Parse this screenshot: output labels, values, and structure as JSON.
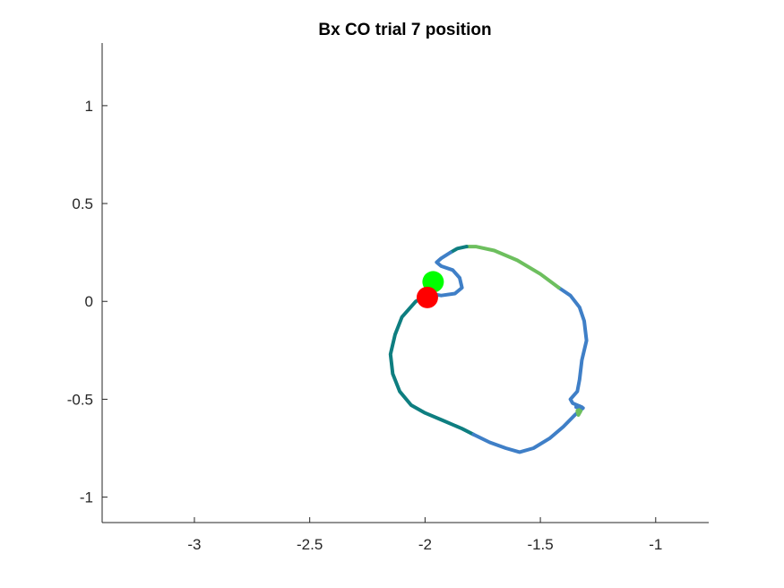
{
  "chart_data": {
    "type": "line",
    "title": "Bx  CO trial 7 position",
    "xlabel": "",
    "ylabel": "",
    "xlim": [
      -3.4,
      -0.77
    ],
    "ylim": [
      -1.13,
      1.32
    ],
    "xticks": [
      -3,
      -2.5,
      -2,
      -1.5,
      -1
    ],
    "xtick_labels": [
      "-3",
      "-2.5",
      "-2",
      "-1.5",
      "-1"
    ],
    "yticks": [
      1,
      0.5,
      0,
      -0.5,
      -1
    ],
    "ytick_labels": [
      "1",
      "0.5",
      "0",
      "-0.5",
      "-1"
    ],
    "grid": false,
    "box": false,
    "colors": {
      "blue": "#3F7FC7",
      "green": "#6DBF5E",
      "teal": "#0E7E80",
      "target_green": "#00FF00",
      "target_red": "#FF0000"
    },
    "series": [
      {
        "color": "#3F7FC7",
        "x": [
          -1.32,
          -1.36,
          -1.37,
          -1.34,
          -1.33,
          -1.32,
          -1.3,
          -1.31,
          -1.33,
          -1.37,
          -1.42
        ],
        "y": [
          -0.54,
          -0.52,
          -0.5,
          -0.46,
          -0.4,
          -0.3,
          -0.2,
          -0.1,
          -0.03,
          0.03,
          0.07
        ]
      },
      {
        "color": "#6DBF5E",
        "x": [
          -1.42,
          -1.5,
          -1.6,
          -1.7,
          -1.78,
          -1.82
        ],
        "y": [
          0.07,
          0.14,
          0.21,
          0.26,
          0.28,
          0.28
        ]
      },
      {
        "color": "#0E7E80",
        "x": [
          -1.82,
          -1.86,
          -1.89
        ],
        "y": [
          0.28,
          0.27,
          0.25
        ]
      },
      {
        "color": "#3F7FC7",
        "x": [
          -1.89,
          -1.93,
          -1.95,
          -1.93,
          -1.88,
          -1.85,
          -1.84,
          -1.87,
          -1.93,
          -1.98
        ],
        "y": [
          0.25,
          0.22,
          0.2,
          0.18,
          0.16,
          0.12,
          0.07,
          0.04,
          0.03,
          0.04
        ]
      },
      {
        "color": "#0E7E80",
        "x": [
          -1.98,
          -2.04,
          -2.1,
          -2.13,
          -2.15,
          -2.14,
          -2.11,
          -2.06,
          -2.0,
          -1.92,
          -1.84,
          -1.79
        ],
        "y": [
          0.04,
          0.0,
          -0.08,
          -0.17,
          -0.27,
          -0.37,
          -0.46,
          -0.53,
          -0.57,
          -0.61,
          -0.65,
          -0.68
        ]
      },
      {
        "color": "#3F7FC7",
        "x": [
          -1.79,
          -1.72,
          -1.65,
          -1.59,
          -1.53,
          -1.46,
          -1.4,
          -1.35,
          -1.32
        ],
        "y": [
          -0.68,
          -0.72,
          -0.75,
          -0.77,
          -0.75,
          -0.7,
          -0.64,
          -0.58,
          -0.55
        ]
      },
      {
        "color": "#6DBF5E",
        "x": [
          -1.33,
          -1.34,
          -1.335,
          -1.325
        ],
        "y": [
          -0.54,
          -0.56,
          -0.58,
          -0.56
        ]
      },
      {
        "color": "#3F7FC7",
        "x": [
          -1.345,
          -1.33,
          -1.315
        ],
        "y": [
          -0.54,
          -0.535,
          -0.545
        ]
      }
    ],
    "markers": [
      {
        "x": -1.965,
        "y": 0.1,
        "color": "#00FF00"
      },
      {
        "x": -1.99,
        "y": 0.02,
        "color": "#FF0000"
      }
    ]
  }
}
